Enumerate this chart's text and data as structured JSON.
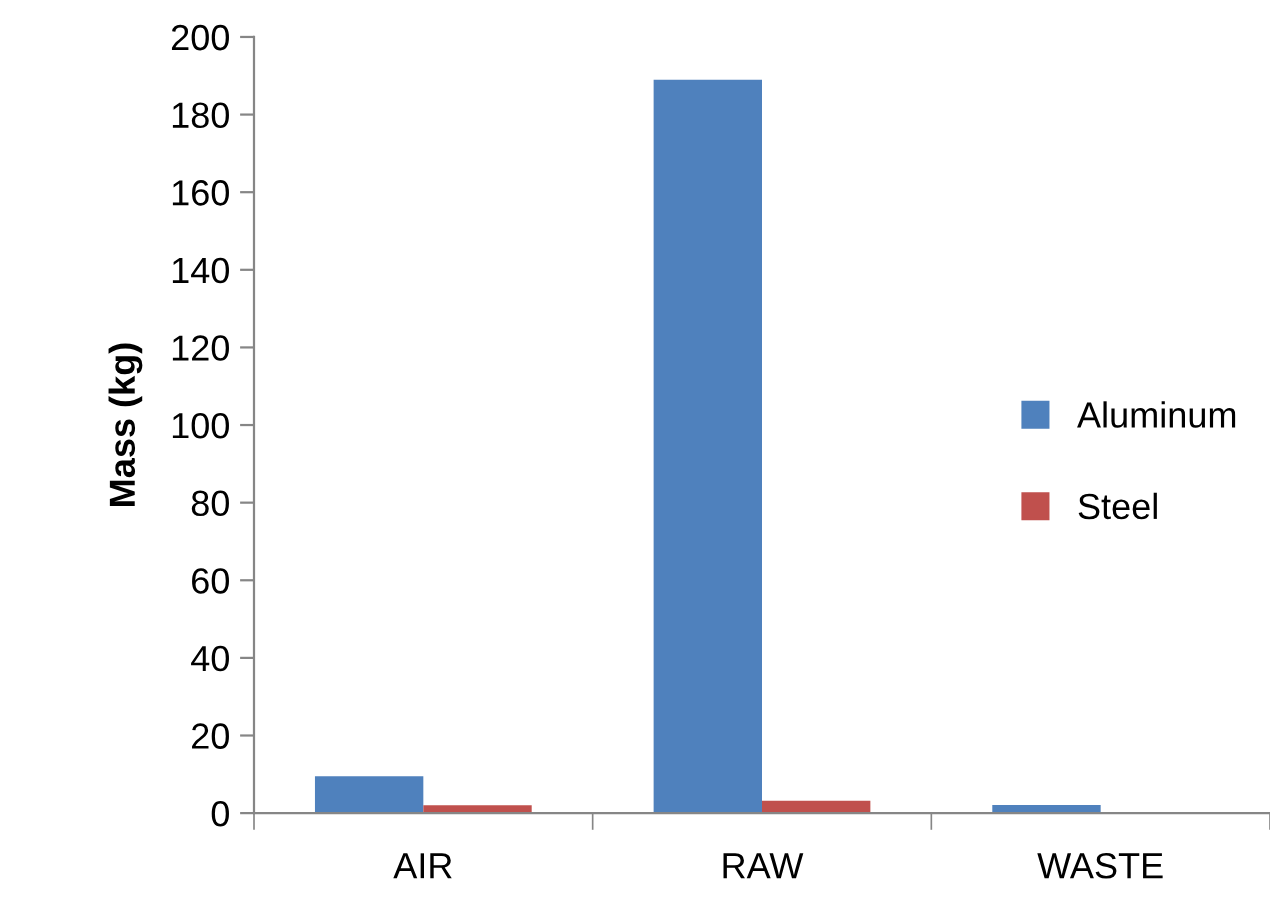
{
  "chart_data": {
    "type": "bar",
    "ylabel": "Mass (kg)",
    "categories": [
      "AIR",
      "RAW",
      "WASTE"
    ],
    "series": [
      {
        "name": "Aluminum",
        "color": "#4f81bd",
        "values": [
          9.5,
          189,
          2.1
        ]
      },
      {
        "name": "Steel",
        "color": "#c0504d",
        "values": [
          2.0,
          3.2,
          0
        ]
      }
    ],
    "ylim": [
      0,
      200
    ],
    "yticks": [
      0,
      20,
      40,
      60,
      80,
      100,
      120,
      140,
      160,
      180,
      200
    ],
    "grid": false,
    "legend": "right"
  }
}
